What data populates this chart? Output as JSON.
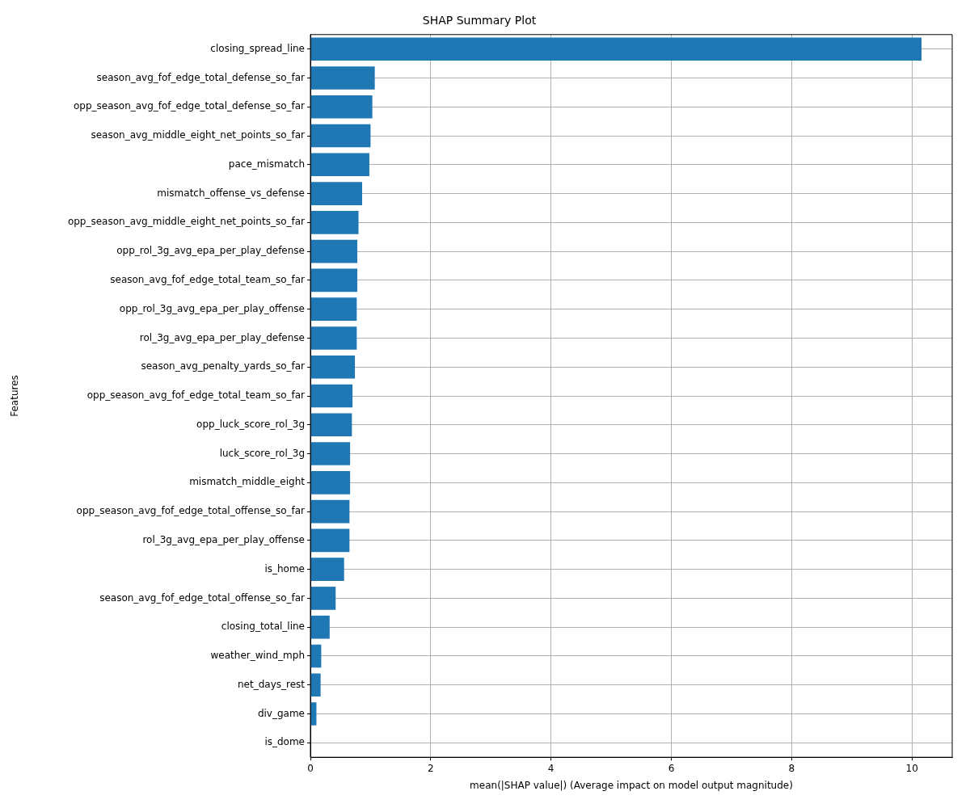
{
  "chart_data": {
    "type": "bar",
    "orientation": "horizontal",
    "title": "SHAP Summary Plot",
    "xlabel": "mean(|SHAP value|) (Average impact on model output magnitude)",
    "ylabel": "Features",
    "categories": [
      "closing_spread_line",
      "season_avg_fof_edge_total_defense_so_far",
      "opp_season_avg_fof_edge_total_defense_so_far",
      "season_avg_middle_eight_net_points_so_far",
      "pace_mismatch",
      "mismatch_offense_vs_defense",
      "opp_season_avg_middle_eight_net_points_so_far",
      "opp_rol_3g_avg_epa_per_play_defense",
      "season_avg_fof_edge_total_team_so_far",
      "opp_rol_3g_avg_epa_per_play_offense",
      "rol_3g_avg_epa_per_play_defense",
      "season_avg_penalty_yards_so_far",
      "opp_season_avg_fof_edge_total_team_so_far",
      "opp_luck_score_rol_3g",
      "luck_score_rol_3g",
      "mismatch_middle_eight",
      "opp_season_avg_fof_edge_total_offense_so_far",
      "rol_3g_avg_epa_per_play_offense",
      "is_home",
      "season_avg_fof_edge_total_offense_so_far",
      "closing_total_line",
      "weather_wind_mph",
      "net_days_rest",
      "div_game",
      "is_dome"
    ],
    "values": [
      10.16,
      1.07,
      1.03,
      1.0,
      0.98,
      0.86,
      0.8,
      0.78,
      0.78,
      0.77,
      0.77,
      0.74,
      0.7,
      0.69,
      0.66,
      0.66,
      0.65,
      0.65,
      0.56,
      0.42,
      0.32,
      0.18,
      0.17,
      0.1,
      0
    ],
    "color": "#1f77b4",
    "xlim": [
      0,
      10.67
    ],
    "xticks": [
      0,
      2,
      4,
      6,
      8,
      10
    ],
    "grid": true
  }
}
